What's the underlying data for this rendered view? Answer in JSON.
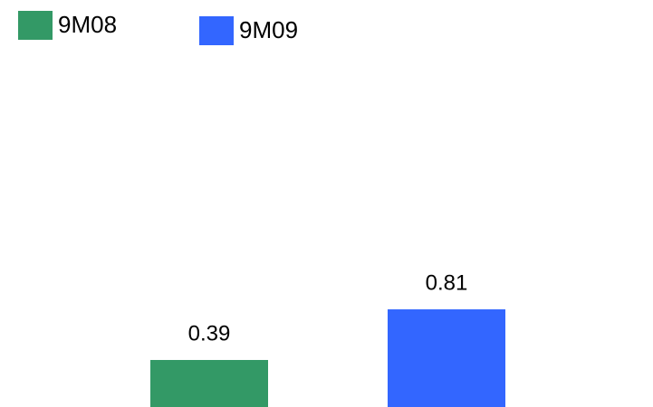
{
  "chart_data": {
    "type": "bar",
    "categories": [
      null
    ],
    "series": [
      {
        "name": "9M08",
        "color": "#339966",
        "values": [
          0.39
        ]
      },
      {
        "name": "9M09",
        "color": "#3366ff",
        "values": [
          0.81
        ]
      }
    ]
  }
}
